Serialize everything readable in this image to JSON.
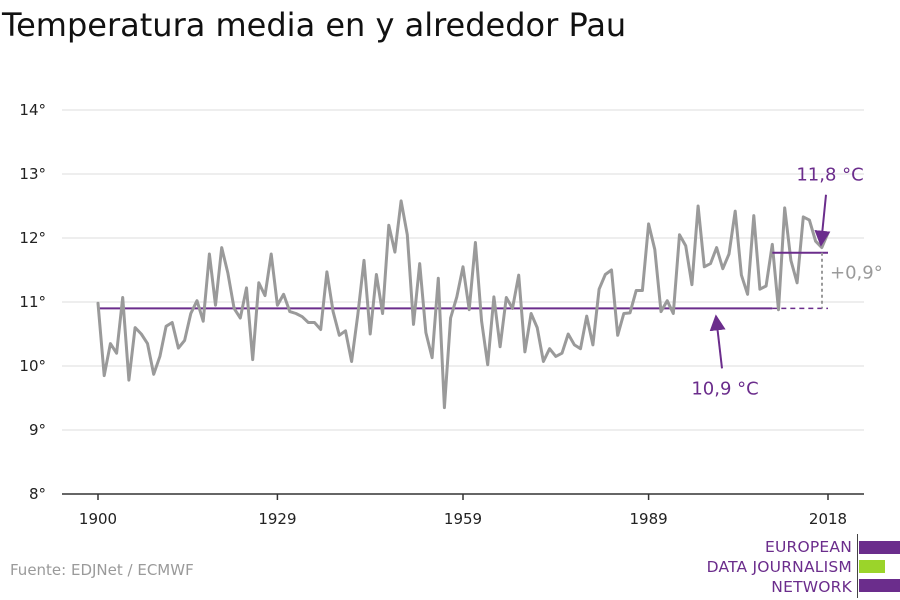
{
  "chart_data": {
    "type": "line",
    "title": "Temperatura media en y alrededor Pau",
    "source": "Fuente: EDJNet / ECMWF",
    "xlim": [
      1900,
      2018
    ],
    "ylim": [
      8,
      14
    ],
    "x_ticks": [
      1900,
      1929,
      1959,
      1989,
      2018
    ],
    "y_ticks": [
      8,
      9,
      10,
      11,
      12,
      13,
      14
    ],
    "y_tick_labels": [
      "8°",
      "9°",
      "10°",
      "11°",
      "12°",
      "13°",
      "14°"
    ],
    "x_tick_labels": [
      "1900",
      "1929",
      "1959",
      "1989",
      "2018"
    ],
    "grid": true,
    "series": [
      {
        "x": [
          1900,
          1901,
          1902,
          1903,
          1904,
          1905,
          1906,
          1907,
          1908,
          1909,
          1910,
          1911,
          1912,
          1913,
          1914,
          1915,
          1916,
          1917,
          1918,
          1919,
          1920,
          1921,
          1922,
          1923,
          1924,
          1925,
          1926,
          1927,
          1928,
          1929,
          1930,
          1931,
          1932,
          1933,
          1934,
          1935,
          1936,
          1937,
          1938,
          1939,
          1940,
          1941,
          1942,
          1943,
          1944,
          1945,
          1946,
          1947,
          1948,
          1949,
          1950,
          1951,
          1952,
          1953,
          1954,
          1955,
          1956,
          1957,
          1958,
          1959,
          1960,
          1961,
          1962,
          1963,
          1964,
          1965,
          1966,
          1967,
          1968,
          1969,
          1970,
          1971,
          1972,
          1973,
          1974,
          1975,
          1976,
          1977,
          1978,
          1979,
          1980,
          1981,
          1982,
          1983,
          1984,
          1985,
          1986,
          1987,
          1988,
          1989,
          1990,
          1991,
          1992,
          1993,
          1994,
          1995,
          1996,
          1997,
          1998,
          1999,
          2000,
          2001,
          2002,
          2003,
          2004,
          2005,
          2006,
          2007,
          2008,
          2009,
          2010,
          2011,
          2012,
          2013,
          2014,
          2015,
          2016,
          2017,
          2018
        ],
        "values": [
          10.98,
          9.85,
          10.35,
          10.2,
          11.07,
          9.78,
          10.6,
          10.5,
          10.35,
          9.87,
          10.15,
          10.62,
          10.68,
          10.28,
          10.4,
          10.82,
          11.02,
          10.7,
          11.75,
          10.95,
          11.85,
          11.45,
          10.9,
          10.75,
          11.22,
          10.1,
          11.3,
          11.1,
          11.75,
          10.95,
          11.12,
          10.85,
          10.82,
          10.77,
          10.68,
          10.68,
          10.57,
          11.47,
          10.85,
          10.48,
          10.55,
          10.07,
          10.8,
          11.65,
          10.5,
          11.43,
          10.82,
          12.2,
          11.78,
          12.58,
          12.05,
          10.65,
          11.6,
          10.52,
          10.13,
          11.37,
          9.35,
          10.75,
          11.08,
          11.55,
          10.88,
          11.93,
          10.7,
          10.02,
          11.08,
          10.3,
          11.07,
          10.9,
          11.42,
          10.22,
          10.82,
          10.6,
          10.07,
          10.27,
          10.15,
          10.2,
          10.5,
          10.33,
          10.27,
          10.78,
          10.33,
          11.2,
          11.43,
          11.5,
          10.48,
          10.82,
          10.83,
          11.18,
          11.18,
          12.22,
          11.82,
          10.85,
          11.02,
          10.82,
          12.05,
          11.88,
          11.27,
          12.5,
          11.55,
          11.6,
          11.85,
          11.52,
          11.75,
          12.42,
          11.42,
          11.12,
          12.35,
          11.2,
          11.25,
          11.9,
          10.88,
          12.47,
          11.65,
          11.3,
          12.33,
          12.28,
          11.95,
          11.85,
          12.08
        ]
      }
    ],
    "annotations": {
      "baseline": {
        "label": "10,9 °C",
        "value": 10.9,
        "from_year": 1900,
        "to_year": 2009
      },
      "recent": {
        "label": "11,8 °C",
        "value": 11.77,
        "from_year": 2009,
        "to_year": 2018
      },
      "difference": {
        "label": "+0,9°"
      }
    },
    "colors": {
      "line": "#9a9a9a",
      "average": "#6b2d8c",
      "grid": "#dddddd",
      "axis": "#333333",
      "diff": "#9a9a9a"
    }
  },
  "logo": {
    "line1": "EUROPEAN",
    "line2": "DATA JOURNALISM",
    "line3": "NETWORK",
    "colors": {
      "purple": "#6b2d8c",
      "green": "#9bd42a"
    }
  }
}
